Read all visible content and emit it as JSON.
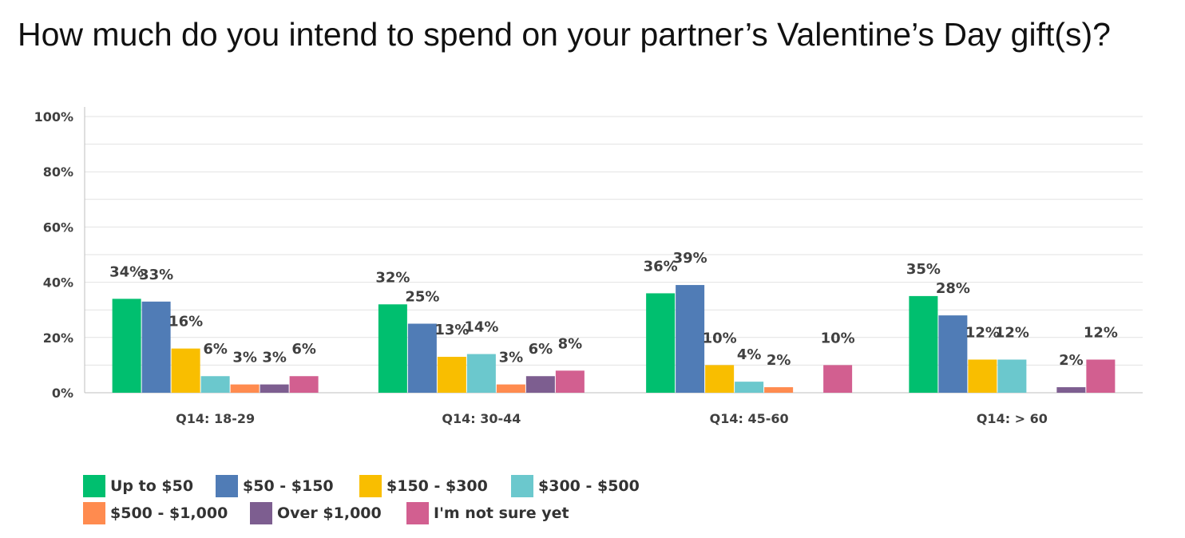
{
  "title": "How much do you intend to spend on your partner’s Valentine’s Day gift(s)?",
  "chart_data": {
    "type": "bar",
    "title": "How much do you intend to spend on your partner’s Valentine’s Day gift(s)?",
    "categories": [
      "Q14: 18-29",
      "Q14: 30-44",
      "Q14: 45-60",
      "Q14: > 60"
    ],
    "ylim": [
      0,
      100
    ],
    "yticks": [
      0,
      20,
      40,
      60,
      80,
      100
    ],
    "ytick_labels": [
      "0%",
      "20%",
      "40%",
      "60%",
      "80%",
      "100%"
    ],
    "grid": true,
    "legend_position": "bottom-left",
    "series": [
      {
        "name": "Up to $50",
        "color": "#00BF6F",
        "values": [
          34,
          32,
          36,
          35
        ],
        "labels": [
          "34%",
          "32%",
          "36%",
          "35%"
        ]
      },
      {
        "name": "$50 - $150",
        "color": "#507CB6",
        "values": [
          33,
          25,
          39,
          28
        ],
        "labels": [
          "33%",
          "25%",
          "39%",
          "28%"
        ]
      },
      {
        "name": "$150 - $300",
        "color": "#F9BE00",
        "values": [
          16,
          13,
          10,
          12
        ],
        "labels": [
          "16%",
          "13%",
          "10%",
          "12%"
        ]
      },
      {
        "name": "$300 - $500",
        "color": "#6BC8CD",
        "values": [
          6,
          14,
          4,
          12
        ],
        "labels": [
          "6%",
          "14%",
          "4%",
          "12%"
        ]
      },
      {
        "name": "$500 - $1,000",
        "color": "#FF8B4F",
        "values": [
          3,
          3,
          2,
          0
        ],
        "labels": [
          "3%",
          "3%",
          "2%",
          ""
        ]
      },
      {
        "name": "Over $1,000",
        "color": "#7D5E90",
        "values": [
          3,
          6,
          0,
          2
        ],
        "labels": [
          "3%",
          "6%",
          "",
          "2%"
        ]
      },
      {
        "name": "I'm not sure yet",
        "color": "#D25F90",
        "values": [
          6,
          8,
          10,
          12
        ],
        "labels": [
          "6%",
          "8%",
          "10%",
          "12%"
        ]
      }
    ]
  }
}
